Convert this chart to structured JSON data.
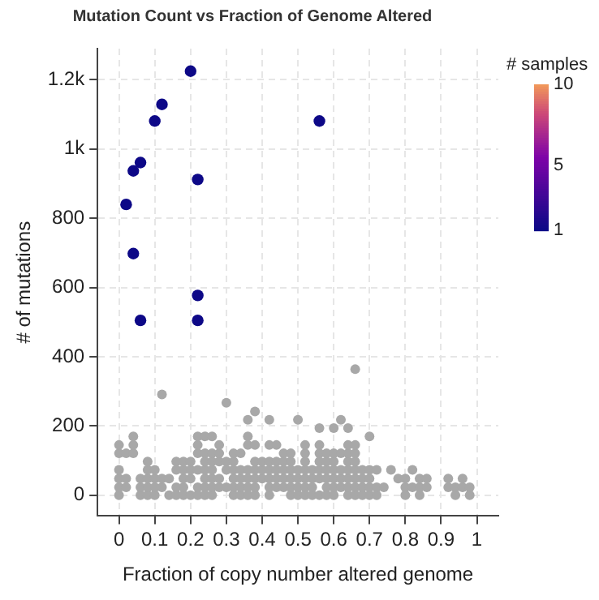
{
  "chart_data": {
    "type": "scatter",
    "title": "Mutation Count vs Fraction of Genome Altered",
    "xlabel": "Fraction of copy number altered genome",
    "ylabel": "# of mutations",
    "clabel": "# samples",
    "clim": [
      1,
      10
    ],
    "cticks": [
      1,
      5,
      10
    ],
    "xlim": [
      -0.06,
      1.06
    ],
    "ylim": [
      -60,
      1290
    ],
    "xticks": [
      0,
      0.1,
      0.2,
      0.3,
      0.4,
      0.5,
      0.6,
      0.7,
      0.8,
      0.9,
      1
    ],
    "yticks": [
      0,
      200,
      400,
      600,
      800,
      {
        "value": 1000,
        "label": "1k"
      },
      {
        "value": 1200,
        "label": "1.2k"
      }
    ],
    "grid": true,
    "marker": "circle",
    "legend": false,
    "series": [
      {
        "color": "#a8a8a8",
        "x": [
          0,
          0.06,
          0.08,
          0.1,
          0.14,
          0.16,
          0.18,
          0.2,
          0.22,
          0.24,
          0.26,
          0.32,
          0.34,
          0.36,
          0.38,
          0.42,
          0.48,
          0.5,
          0.52,
          0.54,
          0.56,
          0.58,
          0.6,
          0.64,
          0.66,
          0.68,
          0.7,
          0.72,
          0.8,
          0.84,
          0.94,
          0.98,
          0,
          0.02,
          0.06,
          0.08,
          0.1,
          0.12,
          0.16,
          0.18,
          0.22,
          0.24,
          0.26,
          0.28,
          0.3,
          0.32,
          0.34,
          0.36,
          0.38,
          0.42,
          0.44,
          0.46,
          0.48,
          0.5,
          0.52,
          0.54,
          0.58,
          0.6,
          0.62,
          0.64,
          0.66,
          0.68,
          0.7,
          0.72,
          0.74,
          0.8,
          0.82,
          0.84,
          0.86,
          0.92,
          0.94,
          0.96,
          0.98,
          0,
          0.02,
          0.06,
          0.08,
          0.1,
          0.12,
          0.14,
          0.18,
          0.2,
          0.24,
          0.26,
          0.28,
          0.32,
          0.34,
          0.36,
          0.38,
          0.4,
          0.42,
          0.44,
          0.46,
          0.48,
          0.5,
          0.52,
          0.54,
          0.56,
          0.58,
          0.6,
          0.62,
          0.64,
          0.66,
          0.68,
          0.7,
          0.78,
          0.8,
          0.84,
          0.86,
          0.92,
          0.96,
          0,
          0.08,
          0.1,
          0.16,
          0.18,
          0.2,
          0.22,
          0.24,
          0.26,
          0.3,
          0.32,
          0.34,
          0.36,
          0.38,
          0.4,
          0.42,
          0.44,
          0.46,
          0.48,
          0.5,
          0.52,
          0.54,
          0.56,
          0.58,
          0.6,
          0.62,
          0.64,
          0.66,
          0.68,
          0.7,
          0.72,
          0.76,
          0.82,
          0.08,
          0.16,
          0.18,
          0.2,
          0.24,
          0.26,
          0.28,
          0.3,
          0.32,
          0.38,
          0.4,
          0.42,
          0.44,
          0.46,
          0.48,
          0.52,
          0.56,
          0.58,
          0.6,
          0.64,
          0.66,
          0,
          0.02,
          0.04,
          0.22,
          0.24,
          0.26,
          0.28,
          0.32,
          0.34,
          0.46,
          0.48,
          0.52,
          0.56,
          0.58,
          0.6,
          0.62,
          0.64,
          0.66,
          0,
          0.04,
          0.22,
          0.28,
          0.36,
          0.38,
          0.42,
          0.44,
          0.52,
          0.56,
          0.64,
          0.66,
          0.04,
          0.22,
          0.24,
          0.26,
          0.36,
          0.7,
          0.56,
          0.6,
          0.64,
          0.36,
          0.42,
          0.5,
          0.62,
          0.38,
          0.3,
          0.12,
          0.66
        ],
        "values": [
          0,
          0,
          0,
          0,
          0,
          0,
          0,
          0,
          0,
          0,
          0,
          0,
          0,
          0,
          0,
          0,
          0,
          0,
          0,
          0,
          0,
          0,
          0,
          0,
          0,
          0,
          0,
          0,
          0,
          0,
          0,
          0,
          23,
          23,
          23,
          23,
          23,
          23,
          23,
          23,
          23,
          23,
          23,
          23,
          23,
          23,
          23,
          23,
          23,
          23,
          23,
          23,
          23,
          23,
          23,
          23,
          23,
          23,
          23,
          23,
          23,
          23,
          23,
          23,
          23,
          23,
          23,
          23,
          23,
          23,
          23,
          23,
          23,
          48,
          48,
          48,
          48,
          48,
          48,
          48,
          48,
          48,
          48,
          48,
          48,
          48,
          48,
          48,
          48,
          48,
          48,
          48,
          48,
          48,
          48,
          48,
          48,
          48,
          48,
          48,
          48,
          48,
          48,
          48,
          48,
          48,
          48,
          48,
          48,
          48,
          48,
          73,
          73,
          73,
          73,
          73,
          73,
          73,
          73,
          73,
          73,
          73,
          73,
          73,
          73,
          73,
          73,
          73,
          73,
          73,
          73,
          73,
          73,
          73,
          73,
          73,
          73,
          73,
          73,
          73,
          73,
          73,
          73,
          73,
          97,
          97,
          97,
          97,
          97,
          97,
          97,
          97,
          97,
          97,
          97,
          97,
          97,
          97,
          97,
          97,
          97,
          97,
          97,
          97,
          97,
          121,
          121,
          121,
          121,
          121,
          121,
          121,
          121,
          121,
          121,
          121,
          121,
          121,
          121,
          121,
          121,
          121,
          121,
          145,
          145,
          145,
          145,
          145,
          145,
          145,
          145,
          145,
          145,
          145,
          145,
          170,
          170,
          170,
          170,
          170,
          170,
          194,
          194,
          194,
          218,
          218,
          218,
          218,
          242,
          267,
          291,
          364
        ]
      },
      {
        "x": [
          0.2,
          0.12,
          0.1,
          0.56,
          0.06,
          0.04,
          0.22,
          0.02,
          0.04,
          0.22,
          0.06,
          0.22
        ],
        "values": [
          1225,
          1129,
          1081,
          1081,
          961,
          937,
          912,
          840,
          698,
          577,
          505,
          505
        ],
        "cvalues": [
          1,
          1,
          1,
          1,
          1,
          1,
          1,
          1,
          1,
          1,
          1,
          1
        ]
      }
    ]
  }
}
